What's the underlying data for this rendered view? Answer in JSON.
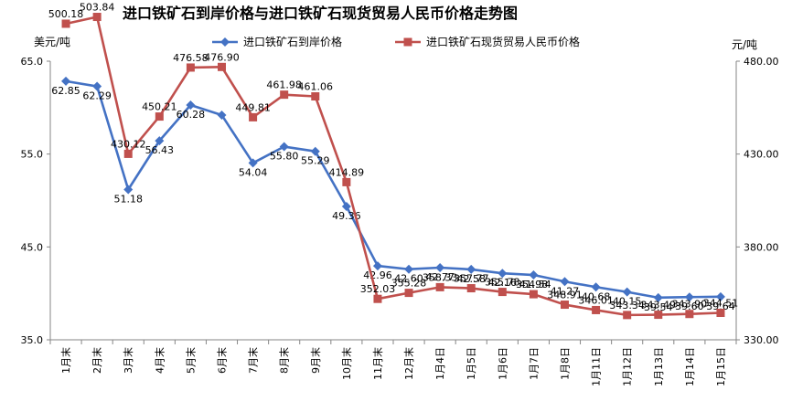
{
  "chart_data": {
    "type": "line",
    "title": "进口铁矿石到岸价格与进口铁矿石现货贸易人民币价格走势图",
    "y_left_unit": "美元/吨",
    "y_right_unit": "元/吨",
    "y_left_range": [
      35,
      65
    ],
    "y_right_range": [
      330,
      480
    ],
    "y_left_ticks": [
      "35.0",
      "45.0",
      "55.0",
      "65.0"
    ],
    "y_right_ticks": [
      "330.00",
      "380.00",
      "430.00",
      "480.00"
    ],
    "legend_position": "top",
    "grid": false,
    "categories": [
      "1月末",
      "2月末",
      "3月末",
      "4月末",
      "5月末",
      "6月末",
      "7月末",
      "8月末",
      "9月末",
      "10月末",
      "11月末",
      "12月末",
      "1月4日",
      "1月5日",
      "1月6日",
      "1月7日",
      "1月8日",
      "1月11日",
      "1月12日",
      "1月13日",
      "1月14日",
      "1月15日"
    ],
    "series": [
      {
        "name": "进口铁矿石到岸价格",
        "axis": "left",
        "color": "#4472C4",
        "marker": "diamond",
        "values": [
          62.85,
          62.29,
          51.18,
          56.43,
          60.28,
          59.2,
          54.04,
          55.8,
          55.29,
          49.36,
          42.96,
          42.6,
          42.77,
          42.58,
          42.16,
          41.98,
          41.27,
          40.68,
          40.15,
          39.54,
          39.6,
          39.64
        ],
        "labels": [
          "62.85",
          "62.29",
          "51.18",
          "56.43",
          "60.28",
          "",
          "54.04",
          "55.80",
          "55.29",
          "49.36",
          "42.96",
          "42.60",
          "42.77",
          "42.58",
          "42.16",
          "41.98",
          "41.27",
          "40.68",
          "40.15",
          "39.54",
          "39.60",
          "39.64"
        ]
      },
      {
        "name": "进口铁矿石现货贸易人民币价格",
        "axis": "right",
        "color": "#C0504D",
        "marker": "square",
        "values": [
          500.18,
          503.84,
          430.12,
          450.21,
          476.58,
          476.9,
          449.81,
          461.98,
          461.06,
          414.89,
          352.03,
          355.28,
          358.33,
          357.77,
          355.78,
          354.54,
          348.91,
          346.01,
          343.34,
          343.49,
          343.9,
          344.51
        ],
        "labels": [
          "500.18",
          "503.84",
          "430.12",
          "450.21",
          "476.58",
          "476.90",
          "449.81",
          "461.98",
          "461.06",
          "414.89",
          "352.03",
          "355.28",
          "358.33",
          "357.77",
          "355.78",
          "354.54",
          "348.91",
          "346.01",
          "343.34",
          "343.49",
          "343.90",
          "344.51"
        ]
      }
    ]
  }
}
